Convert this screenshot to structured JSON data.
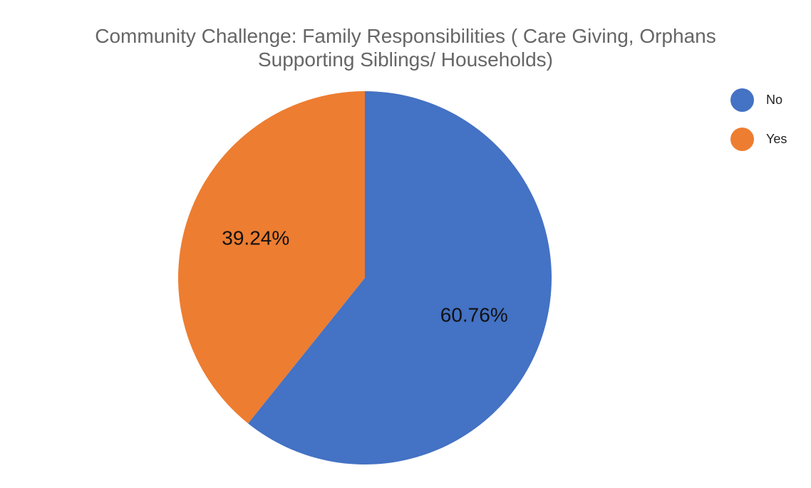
{
  "chart_data": {
    "type": "pie",
    "title_line1": "Community Challenge: Family Responsibilities ( Care Giving, Orphans",
    "title_line2": "Supporting Siblings/ Households)",
    "legend_position": "top-right",
    "slices": [
      {
        "name": "No",
        "value": 60.76,
        "label": "60.76%",
        "color": "#4472C4"
      },
      {
        "name": "Yes",
        "value": 39.24,
        "label": "39.24%",
        "color": "#ED7D31"
      }
    ]
  }
}
